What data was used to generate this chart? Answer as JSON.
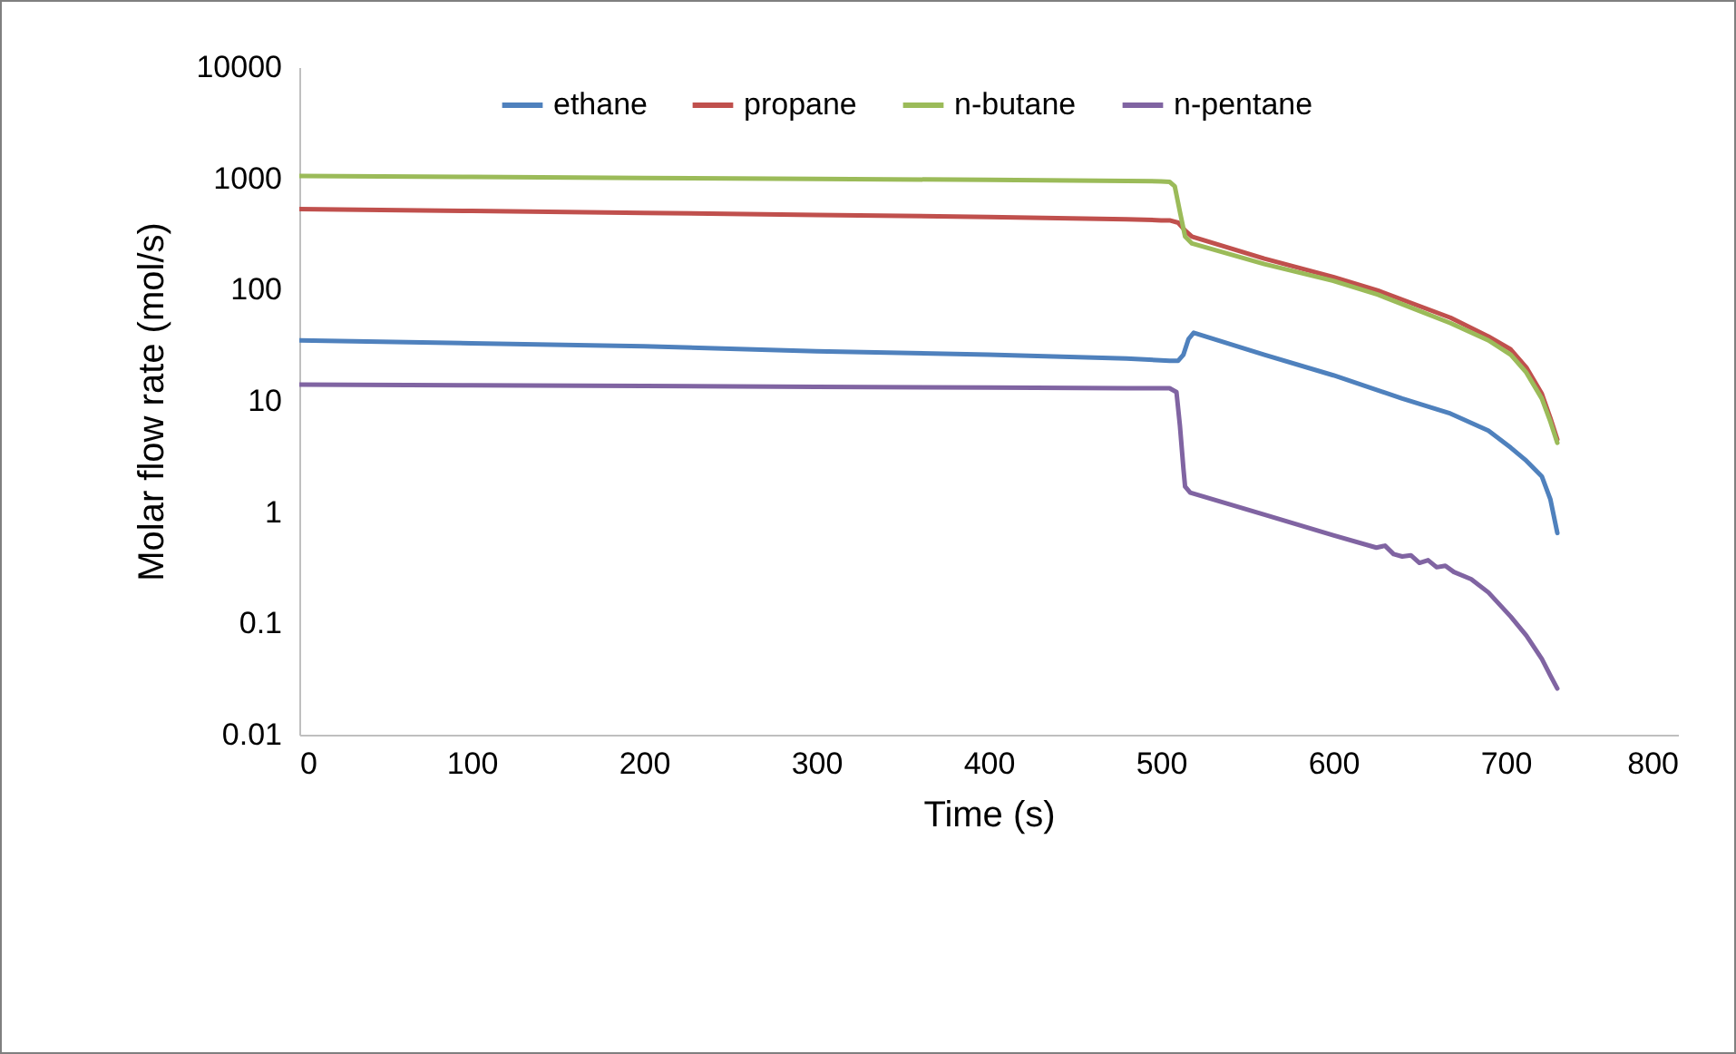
{
  "chart_data": {
    "type": "line",
    "xlabel": "Time (s)",
    "ylabel": "Molar flow rate (mol/s)",
    "log": "y",
    "xlim": [
      0,
      800
    ],
    "xticks": [
      0,
      100,
      200,
      300,
      400,
      500,
      600,
      700,
      800
    ],
    "ylim": [
      0.01,
      10000
    ],
    "yticks": [
      0.01,
      0.1,
      1,
      10,
      100,
      1000,
      10000
    ],
    "grid": false,
    "legend": "top",
    "marker": "none",
    "line_style": "solid",
    "series": [
      {
        "name": "ethane",
        "color": "#4f81bd",
        "x": [
          0,
          100,
          200,
          300,
          400,
          480,
          505,
          510,
          513,
          516,
          519,
          560,
          600,
          640,
          668,
          690,
          703,
          712,
          721,
          726,
          730
        ],
        "values": [
          35,
          33,
          31,
          28,
          26,
          24,
          23,
          23,
          26,
          36,
          41,
          26,
          17,
          10.5,
          7.7,
          5.4,
          3.8,
          2.9,
          2.1,
          1.3,
          0.65
        ]
      },
      {
        "name": "propane",
        "color": "#c0504d",
        "x": [
          0,
          100,
          200,
          300,
          400,
          480,
          500,
          505,
          510,
          514,
          518,
          560,
          600,
          626,
          668,
          690,
          703,
          712,
          721,
          726,
          730
        ],
        "values": [
          530,
          510,
          490,
          470,
          450,
          430,
          420,
          420,
          400,
          340,
          300,
          190,
          130,
          98,
          56,
          38,
          29,
          20,
          11.6,
          7,
          4.5
        ]
      },
      {
        "name": "n-butane",
        "color": "#9bbb59",
        "x": [
          0,
          100,
          200,
          300,
          400,
          480,
          500,
          505,
          508,
          511,
          514,
          518,
          560,
          600,
          626,
          668,
          690,
          703,
          712,
          721,
          726,
          730
        ],
        "values": [
          1050,
          1030,
          1010,
          990,
          970,
          950,
          940,
          930,
          850,
          500,
          300,
          260,
          170,
          120,
          90,
          50,
          35,
          26,
          18,
          10.5,
          6.5,
          4.2
        ]
      },
      {
        "name": "n-pentane",
        "color": "#8064a2",
        "x": [
          0,
          100,
          200,
          300,
          400,
          480,
          500,
          505,
          509,
          511,
          513,
          514,
          517,
          560,
          600,
          625,
          630,
          635,
          640,
          645,
          650,
          655,
          660,
          665,
          670,
          680,
          690,
          703,
          712,
          721,
          726,
          730
        ],
        "values": [
          14,
          13.8,
          13.6,
          13.4,
          13.2,
          13,
          13,
          13,
          12,
          6,
          2.5,
          1.7,
          1.5,
          0.95,
          0.62,
          0.48,
          0.5,
          0.42,
          0.4,
          0.41,
          0.35,
          0.37,
          0.32,
          0.33,
          0.29,
          0.25,
          0.19,
          0.115,
          0.078,
          0.048,
          0.034,
          0.026
        ]
      }
    ]
  }
}
